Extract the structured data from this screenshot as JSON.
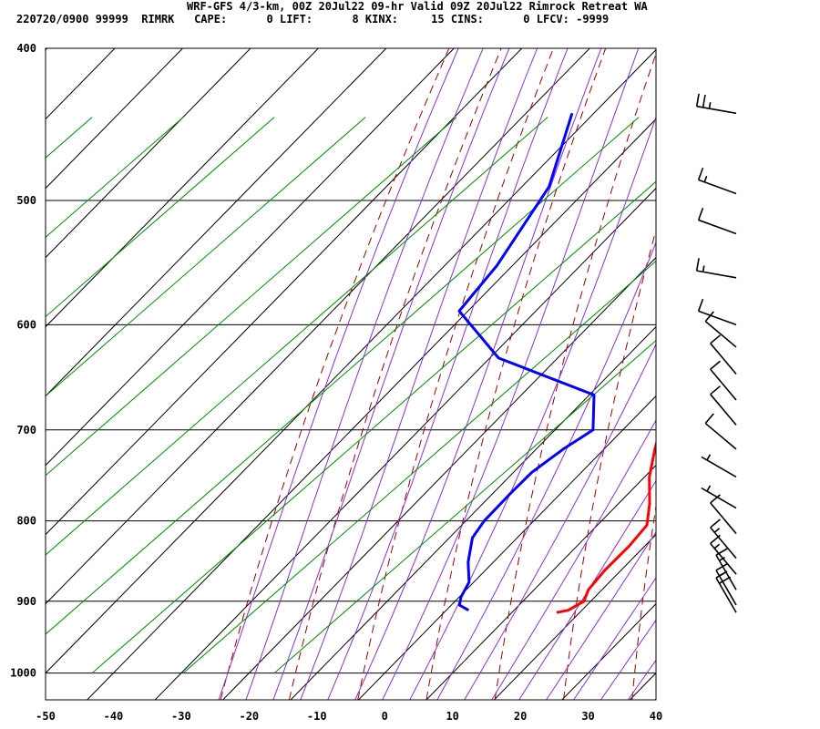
{
  "header": {
    "line1": "WRF-GFS 4/3-km, 00Z 20Jul22 09-hr Valid 09Z 20Jul22 Rimrock Retreat WA",
    "line2": "220720/0900 99999  RIMRK   CAPE:      0 LIFT:      8 KINX:     15 CINS:      0 LFCV: -9999"
  },
  "chart_data": {
    "type": "line",
    "subtype": "skew-T log-P sounding",
    "title": "WRF-GFS 4/3-km, 00Z 20Jul22 09-hr Valid 09Z 20Jul22 Rimrock Retreat WA",
    "xlabel": "",
    "ylabel": "",
    "xlim": [
      -50,
      40
    ],
    "ylim": [
      1040,
      400
    ],
    "y_scale": "log",
    "grid": true,
    "x_ticks": [
      "-50",
      "-40",
      "-30",
      "-20",
      "-10",
      "0",
      "10",
      "20",
      "30",
      "40"
    ],
    "y_ticks": [
      "400",
      "500",
      "600",
      "700",
      "800",
      "900",
      "1000"
    ],
    "series": [
      {
        "name": "",
        "color": "#ff0000",
        "points": [
          {
            "p": 915,
            "t": 16.6
          },
          {
            "p": 912,
            "t": 18.0
          },
          {
            "p": 900,
            "t": 19.0
          },
          {
            "p": 885,
            "t": 18.0
          },
          {
            "p": 860,
            "t": 17.6
          },
          {
            "p": 830,
            "t": 17.7
          },
          {
            "p": 805,
            "t": 17.3
          },
          {
            "p": 780,
            "t": 14.6
          },
          {
            "p": 750,
            "t": 10.7
          },
          {
            "p": 720,
            "t": 7.5
          },
          {
            "p": 700,
            "t": 5.5
          },
          {
            "p": 670,
            "t": 3.5
          },
          {
            "p": 640,
            "t": 1.2
          },
          {
            "p": 600,
            "t": -2.5
          },
          {
            "p": 550,
            "t": -8.5
          },
          {
            "p": 500,
            "t": -15.8
          },
          {
            "p": 470,
            "t": -21.5
          },
          {
            "p": 440,
            "t": -27.5
          }
        ]
      },
      {
        "name": "",
        "color": "#0000ff",
        "points": [
          {
            "p": 912,
            "t": 3.3
          },
          {
            "p": 905,
            "t": 1.2
          },
          {
            "p": 895,
            "t": 0.3
          },
          {
            "p": 875,
            "t": -0.7
          },
          {
            "p": 850,
            "t": -3.7
          },
          {
            "p": 820,
            "t": -6.6
          },
          {
            "p": 800,
            "t": -7.3
          },
          {
            "p": 770,
            "t": -7.4
          },
          {
            "p": 745,
            "t": -7.3
          },
          {
            "p": 720,
            "t": -6.0
          },
          {
            "p": 700,
            "t": -4.4
          },
          {
            "p": 665,
            "t": -9.3
          },
          {
            "p": 630,
            "t": -28.7
          },
          {
            "p": 588,
            "t": -41.3
          },
          {
            "p": 550,
            "t": -42.3
          },
          {
            "p": 490,
            "t": -46.0
          },
          {
            "p": 440,
            "t": -53.2
          }
        ]
      }
    ],
    "isotherms_color": "#000000",
    "dry_adiabats_color": "#990000",
    "moist_adiabats_color": "#8833cc",
    "mixing_ratio_color": "#008800",
    "wind_barbs": [
      {
        "p": 915,
        "dir": 330,
        "kt": 20
      },
      {
        "p": 905,
        "dir": 330,
        "kt": 15
      },
      {
        "p": 885,
        "dir": 330,
        "kt": 15
      },
      {
        "p": 865,
        "dir": 320,
        "kt": 15
      },
      {
        "p": 845,
        "dir": 320,
        "kt": 15
      },
      {
        "p": 815,
        "dir": 320,
        "kt": 10
      },
      {
        "p": 785,
        "dir": 300,
        "kt": 5
      },
      {
        "p": 750,
        "dir": 300,
        "kt": 5
      },
      {
        "p": 720,
        "dir": 310,
        "kt": 10
      },
      {
        "p": 695,
        "dir": 320,
        "kt": 10
      },
      {
        "p": 670,
        "dir": 320,
        "kt": 10
      },
      {
        "p": 645,
        "dir": 320,
        "kt": 10
      },
      {
        "p": 620,
        "dir": 310,
        "kt": 10
      },
      {
        "p": 600,
        "dir": 290,
        "kt": 10
      },
      {
        "p": 560,
        "dir": 280,
        "kt": 15
      },
      {
        "p": 525,
        "dir": 290,
        "kt": 10
      },
      {
        "p": 495,
        "dir": 290,
        "kt": 15
      },
      {
        "p": 440,
        "dir": 280,
        "kt": 25
      }
    ],
    "barb_color": "#000000"
  }
}
